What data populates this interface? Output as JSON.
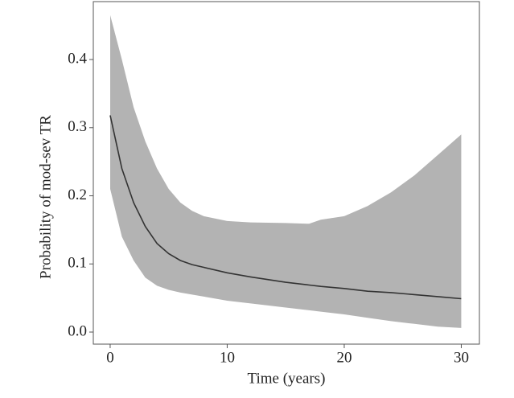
{
  "chart_data": {
    "type": "line",
    "x_label": "Time (years)",
    "y_label": "Probability of mod-sev TR",
    "x": [
      0,
      1,
      2,
      3,
      4,
      5,
      6,
      7,
      8,
      10,
      12,
      15,
      17,
      18,
      20,
      22,
      24,
      26,
      28,
      30
    ],
    "series": [
      {
        "color": "#333333",
        "values": [
          0.318,
          0.24,
          0.19,
          0.155,
          0.13,
          0.115,
          0.105,
          0.099,
          0.095,
          0.087,
          0.081,
          0.073,
          0.069,
          0.067,
          0.064,
          0.06,
          0.058,
          0.055,
          0.052,
          0.049
        ]
      }
    ],
    "band": {
      "color": "#b3b3b3",
      "upper": [
        0.465,
        0.4,
        0.33,
        0.28,
        0.24,
        0.21,
        0.19,
        0.178,
        0.17,
        0.163,
        0.161,
        0.16,
        0.159,
        0.165,
        0.17,
        0.185,
        0.205,
        0.23,
        0.26,
        0.29
      ],
      "lower": [
        0.21,
        0.14,
        0.105,
        0.08,
        0.068,
        0.062,
        0.058,
        0.055,
        0.052,
        0.046,
        0.042,
        0.036,
        0.032,
        0.03,
        0.026,
        0.021,
        0.016,
        0.012,
        0.008,
        0.006
      ]
    },
    "xlim": [
      -1.44,
      31.55
    ],
    "ylim": [
      -0.0177,
      0.485
    ],
    "xticks": [
      0,
      10,
      20,
      30
    ],
    "yticks": [
      {
        "value": 0,
        "label": "0.0"
      },
      0.1,
      0.2,
      0.3,
      0.4
    ]
  }
}
